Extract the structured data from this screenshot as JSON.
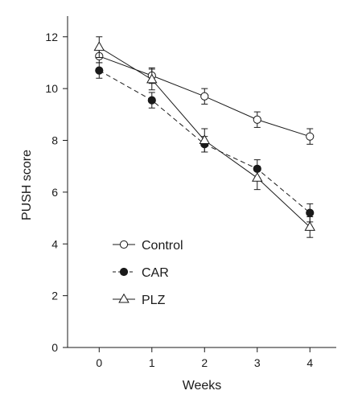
{
  "chart_data": {
    "type": "line",
    "title": "",
    "xlabel": "Weeks",
    "ylabel": "PUSH score",
    "x": [
      0,
      1,
      2,
      3,
      4
    ],
    "xlim": [
      -0.6,
      4.5
    ],
    "ylim": [
      0,
      12.8
    ],
    "xticks": [
      "0",
      "1",
      "2",
      "3",
      "4"
    ],
    "yticks": [
      "0",
      "2",
      "4",
      "6",
      "8",
      "10",
      "12"
    ],
    "grid": false,
    "legend_position": "bottom-left",
    "series": [
      {
        "name": "Control",
        "marker": "open-circle",
        "line_style": "solid",
        "values": [
          11.25,
          10.5,
          9.7,
          8.8,
          8.15
        ],
        "errors": [
          0.25,
          0.3,
          0.3,
          0.3,
          0.3
        ]
      },
      {
        "name": "CAR",
        "marker": "filled-circle",
        "line_style": "dashed",
        "values": [
          10.7,
          9.55,
          7.85,
          6.9,
          5.2
        ],
        "errors": [
          0.3,
          0.3,
          0.3,
          0.35,
          0.35
        ]
      },
      {
        "name": "PLZ",
        "marker": "open-triangle",
        "line_style": "solid",
        "values": [
          11.6,
          10.35,
          8.0,
          6.55,
          4.65
        ],
        "errors": [
          0.4,
          0.4,
          0.45,
          0.45,
          0.4
        ]
      }
    ]
  }
}
